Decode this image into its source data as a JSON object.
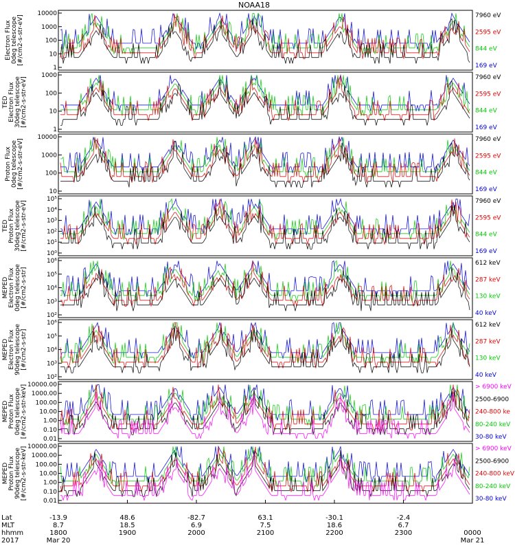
{
  "figure": {
    "title": "NOAA18",
    "ticks_x_labels": [
      {
        "lat": "-13.9",
        "mlt": "8.7",
        "hhmm": "1800",
        "date": "Mar 20"
      },
      {
        "lat": "48.6",
        "mlt": "18.5",
        "hhmm": "1900",
        "date": ""
      },
      {
        "lat": "-82.7",
        "mlt": "6.9",
        "hhmm": "2000",
        "date": ""
      },
      {
        "lat": "63.1",
        "mlt": "7.5",
        "hhmm": "2100",
        "date": ""
      },
      {
        "lat": "-30.1",
        "mlt": "18.6",
        "hhmm": "2200",
        "date": ""
      },
      {
        "lat": "-2.4",
        "mlt": "6.7",
        "hhmm": "2300",
        "date": ""
      },
      {
        "lat": "",
        "mlt": "",
        "hhmm": "0000",
        "date": "Mar 21"
      }
    ],
    "row_labels": {
      "lat": "Lat",
      "mlt": "MLT",
      "hhmm": "hhmm",
      "year": "2017"
    }
  },
  "chart_data": [
    {
      "type": "line",
      "ylabel": [
        "Electron Flux",
        "0deg telescope",
        "[#/cm2-s-str-eV]"
      ],
      "yticks": [
        "10000",
        "1000",
        "100",
        "10",
        "1"
      ],
      "legend": [
        {
          "label": "7960 eV",
          "color": "#000000"
        },
        {
          "label": "2595 eV",
          "color": "#e00000"
        },
        {
          "label": "844 eV",
          "color": "#00cc00"
        },
        {
          "label": "169 eV",
          "color": "#0000dd"
        }
      ],
      "series": [
        {
          "name": "7960 eV",
          "color": "#000000"
        },
        {
          "name": "2595 eV",
          "color": "#e00000"
        },
        {
          "name": "844 eV",
          "color": "#00cc00"
        },
        {
          "name": "169 eV",
          "color": "#0000dd"
        }
      ]
    },
    {
      "type": "line",
      "ylabel": [
        "TED",
        "Electron Flux",
        "30deg telescope",
        "[#/cm2-s-str-eV]"
      ],
      "yticks": [
        "1000",
        "100",
        "10",
        "1"
      ],
      "legend": [
        {
          "label": "7960 eV",
          "color": "#000000"
        },
        {
          "label": "2595 eV",
          "color": "#e00000"
        },
        {
          "label": "844 eV",
          "color": "#00cc00"
        },
        {
          "label": "169 eV",
          "color": "#0000dd"
        }
      ],
      "series": [
        {
          "name": "7960 eV",
          "color": "#000000"
        },
        {
          "name": "2595 eV",
          "color": "#e00000"
        },
        {
          "name": "844 eV",
          "color": "#00cc00"
        },
        {
          "name": "169 eV",
          "color": "#0000dd"
        }
      ]
    },
    {
      "type": "line",
      "ylabel": [
        "Proton Flux",
        "0deg telescope",
        "[#/cm2-s-str-eV]"
      ],
      "yticks": [
        "10000",
        "1000",
        "100",
        "10"
      ],
      "legend": [
        {
          "label": "7960 eV",
          "color": "#000000"
        },
        {
          "label": "2595 eV",
          "color": "#e00000"
        },
        {
          "label": "844 eV",
          "color": "#00cc00"
        },
        {
          "label": "169 eV",
          "color": "#0000dd"
        }
      ],
      "series": [
        {
          "name": "7960 eV",
          "color": "#000000"
        },
        {
          "name": "2595 eV",
          "color": "#e00000"
        },
        {
          "name": "844 eV",
          "color": "#00cc00"
        },
        {
          "name": "169 eV",
          "color": "#0000dd"
        }
      ]
    },
    {
      "type": "line",
      "ylabel": [
        "TED",
        "Proton Flux",
        "30deg telescope",
        "[#/cm2-s-str-eV]"
      ],
      "yticks": [
        "10⁵",
        "10⁴",
        "10³",
        "10²",
        "10¹",
        "10⁰"
      ],
      "legend": [
        {
          "label": "7960 eV",
          "color": "#000000"
        },
        {
          "label": "2595 eV",
          "color": "#e00000"
        },
        {
          "label": "844 eV",
          "color": "#00cc00"
        },
        {
          "label": "169 eV",
          "color": "#0000dd"
        }
      ],
      "series": [
        {
          "name": "7960 eV",
          "color": "#000000"
        },
        {
          "name": "2595 eV",
          "color": "#e00000"
        },
        {
          "name": "844 eV",
          "color": "#00cc00"
        },
        {
          "name": "169 eV",
          "color": "#0000dd"
        }
      ]
    },
    {
      "type": "line",
      "ylabel": [
        "MEPED",
        "Electron Flux",
        "0deg telescope",
        "[#/cm2-s-str]"
      ],
      "yticks": [
        "10⁶",
        "10⁵",
        "10⁴",
        "10³",
        "10²"
      ],
      "legend": [
        {
          "label": "612 keV",
          "color": "#000000"
        },
        {
          "label": "287 keV",
          "color": "#e00000"
        },
        {
          "label": "130 keV",
          "color": "#00cc00"
        },
        {
          "label": "40 keV",
          "color": "#0000dd"
        }
      ],
      "series": [
        {
          "name": "612 keV",
          "color": "#000000"
        },
        {
          "name": "287 keV",
          "color": "#e00000"
        },
        {
          "name": "130 keV",
          "color": "#00cc00"
        },
        {
          "name": "40 keV",
          "color": "#0000dd"
        }
      ]
    },
    {
      "type": "line",
      "ylabel": [
        "MEPED",
        "Electron Flux",
        "90deg telescope",
        "[#/cm2-s-str]"
      ],
      "yticks": [
        "10⁶",
        "10⁵",
        "10⁴",
        "10³",
        "10²"
      ],
      "legend": [
        {
          "label": "612 keV",
          "color": "#000000"
        },
        {
          "label": "287 keV",
          "color": "#e00000"
        },
        {
          "label": "130 keV",
          "color": "#00cc00"
        },
        {
          "label": "40 keV",
          "color": "#0000dd"
        }
      ],
      "series": [
        {
          "name": "612 keV",
          "color": "#000000"
        },
        {
          "name": "287 keV",
          "color": "#e00000"
        },
        {
          "name": "130 keV",
          "color": "#00cc00"
        },
        {
          "name": "40 keV",
          "color": "#0000dd"
        }
      ]
    },
    {
      "type": "line",
      "ylabel": [
        "MEPED",
        "Proton Flux",
        "0deg telescope",
        "[#/cm2-s-str-keV]"
      ],
      "yticks": [
        "10000.00",
        "1000.00",
        "100.00",
        "10.00",
        "1.00",
        "0.10",
        "0.01"
      ],
      "legend": [
        {
          "label": "> 6900 keV",
          "color": "#ff00ff"
        },
        {
          "label": "2500-6900",
          "color": "#000000"
        },
        {
          "label": "240-800 ke",
          "color": "#e00000"
        },
        {
          "label": "80-240 keV",
          "color": "#00cc00"
        },
        {
          "label": "30-80 keV",
          "color": "#0000dd"
        }
      ],
      "series": [
        {
          "name": "> 6900 keV",
          "color": "#ff00ff"
        },
        {
          "name": "2500-6900",
          "color": "#000000"
        },
        {
          "name": "240-800 ke",
          "color": "#e00000"
        },
        {
          "name": "80-240 keV",
          "color": "#00cc00"
        },
        {
          "name": "30-80 keV",
          "color": "#0000dd"
        }
      ]
    },
    {
      "type": "line",
      "ylabel": [
        "MEPED",
        "Proton Flux",
        "90deg telescope",
        "[#/cm2-s-str-keV]"
      ],
      "yticks": [
        "10000.00",
        "1000.00",
        "100.00",
        "10.00",
        "1.00",
        "0.10",
        "0.01"
      ],
      "legend": [
        {
          "label": "> 6900 keV",
          "color": "#ff00ff"
        },
        {
          "label": "2500-6900",
          "color": "#000000"
        },
        {
          "label": "240-800 keV",
          "color": "#e00000"
        },
        {
          "label": "80-240 keV",
          "color": "#00cc00"
        },
        {
          "label": "30-80 keV",
          "color": "#0000dd"
        }
      ],
      "series": [
        {
          "name": "> 6900 keV",
          "color": "#ff00ff"
        },
        {
          "name": "2500-6900",
          "color": "#000000"
        },
        {
          "name": "240-800 keV",
          "color": "#e00000"
        },
        {
          "name": "80-240 keV",
          "color": "#00cc00"
        },
        {
          "name": "30-80 keV",
          "color": "#0000dd"
        }
      ]
    }
  ]
}
